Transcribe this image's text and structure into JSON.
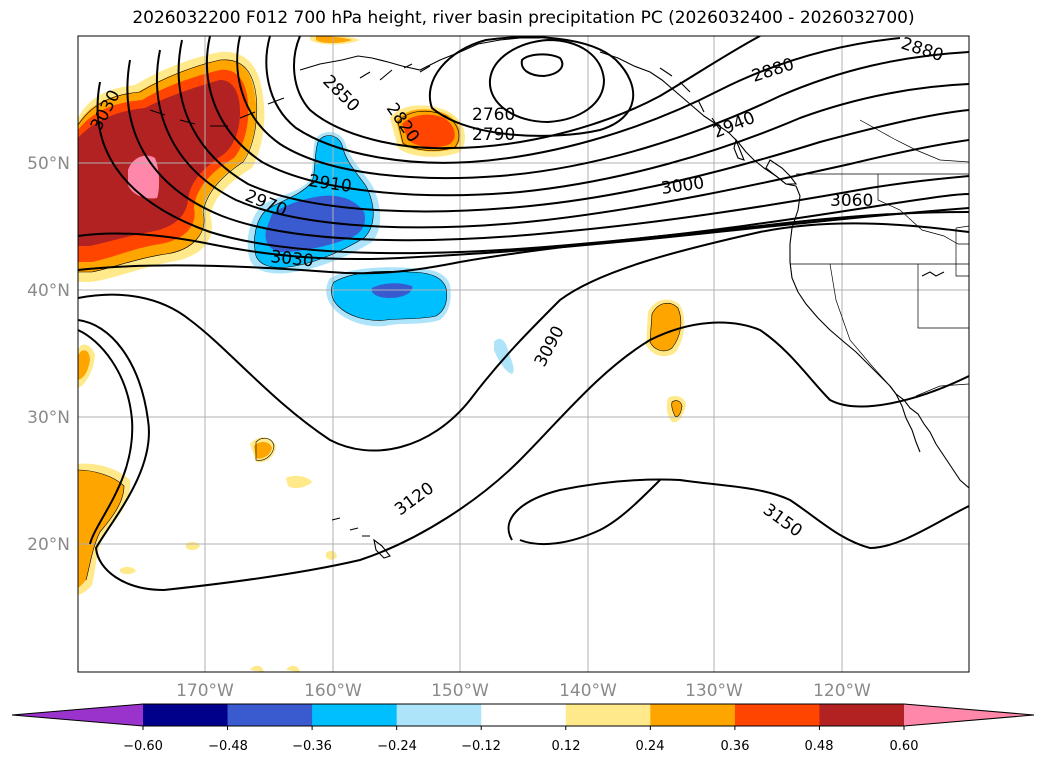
{
  "title": "2026032200 F012 700 hPa height, river basin precipitation PC (2026032400 - 2026032700)",
  "lat_labels": [
    "50°N",
    "40°N",
    "30°N",
    "20°N"
  ],
  "lon_labels": [
    "170°W",
    "160°W",
    "150°W",
    "140°W",
    "130°W",
    "120°W"
  ],
  "contour_labels": [
    "3030",
    "2850",
    "2820",
    "2760",
    "2790",
    "2880",
    "2880",
    "2940",
    "2910",
    "2970",
    "3030",
    "3000",
    "3060",
    "3090",
    "3120",
    "3150"
  ],
  "colorbar": {
    "ticks": [
      "−0.60",
      "−0.48",
      "−0.36",
      "−0.24",
      "−0.12",
      "0.12",
      "0.24",
      "0.36",
      "0.48",
      "0.60"
    ],
    "colors": [
      "#9933cc",
      "#00008b",
      "#3a5bd0",
      "#00bfff",
      "#aee4fa",
      "#ffffff",
      "#ffe98a",
      "#ffa500",
      "#ff4500",
      "#b22222",
      "#ff88aa"
    ]
  }
}
